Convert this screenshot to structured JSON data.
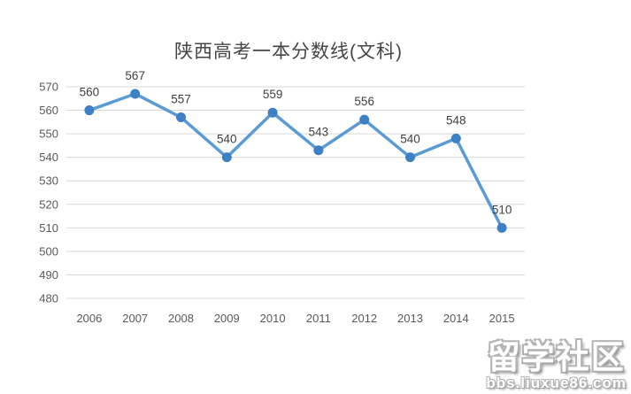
{
  "chart_data": {
    "type": "line",
    "title": "陕西高考一本分数线(文科)",
    "categories": [
      "2006",
      "2007",
      "2008",
      "2009",
      "2010",
      "2011",
      "2012",
      "2013",
      "2014",
      "2015"
    ],
    "values": [
      560,
      567,
      557,
      540,
      559,
      543,
      556,
      540,
      548,
      510
    ],
    "data_labels": [
      "560",
      "567",
      "557",
      "540",
      "559",
      "543",
      "556",
      "540",
      "548",
      "510"
    ],
    "xlabel": "",
    "ylabel": "",
    "ylim": [
      480,
      570
    ],
    "yticks": [
      480,
      490,
      500,
      510,
      520,
      530,
      540,
      550,
      560,
      570
    ],
    "grid": "horizontal",
    "legend": "none",
    "colors": {
      "line": "#5B9BD5",
      "marker": "#3E80C4",
      "gridline": "#D9D9D9",
      "tick_text": "#595959",
      "data_label_text": "#404040",
      "title_text": "#454545",
      "background": "#ffffff"
    }
  },
  "watermark": {
    "line1": "留学社区",
    "line2": "bbs.liuxue86.com"
  }
}
